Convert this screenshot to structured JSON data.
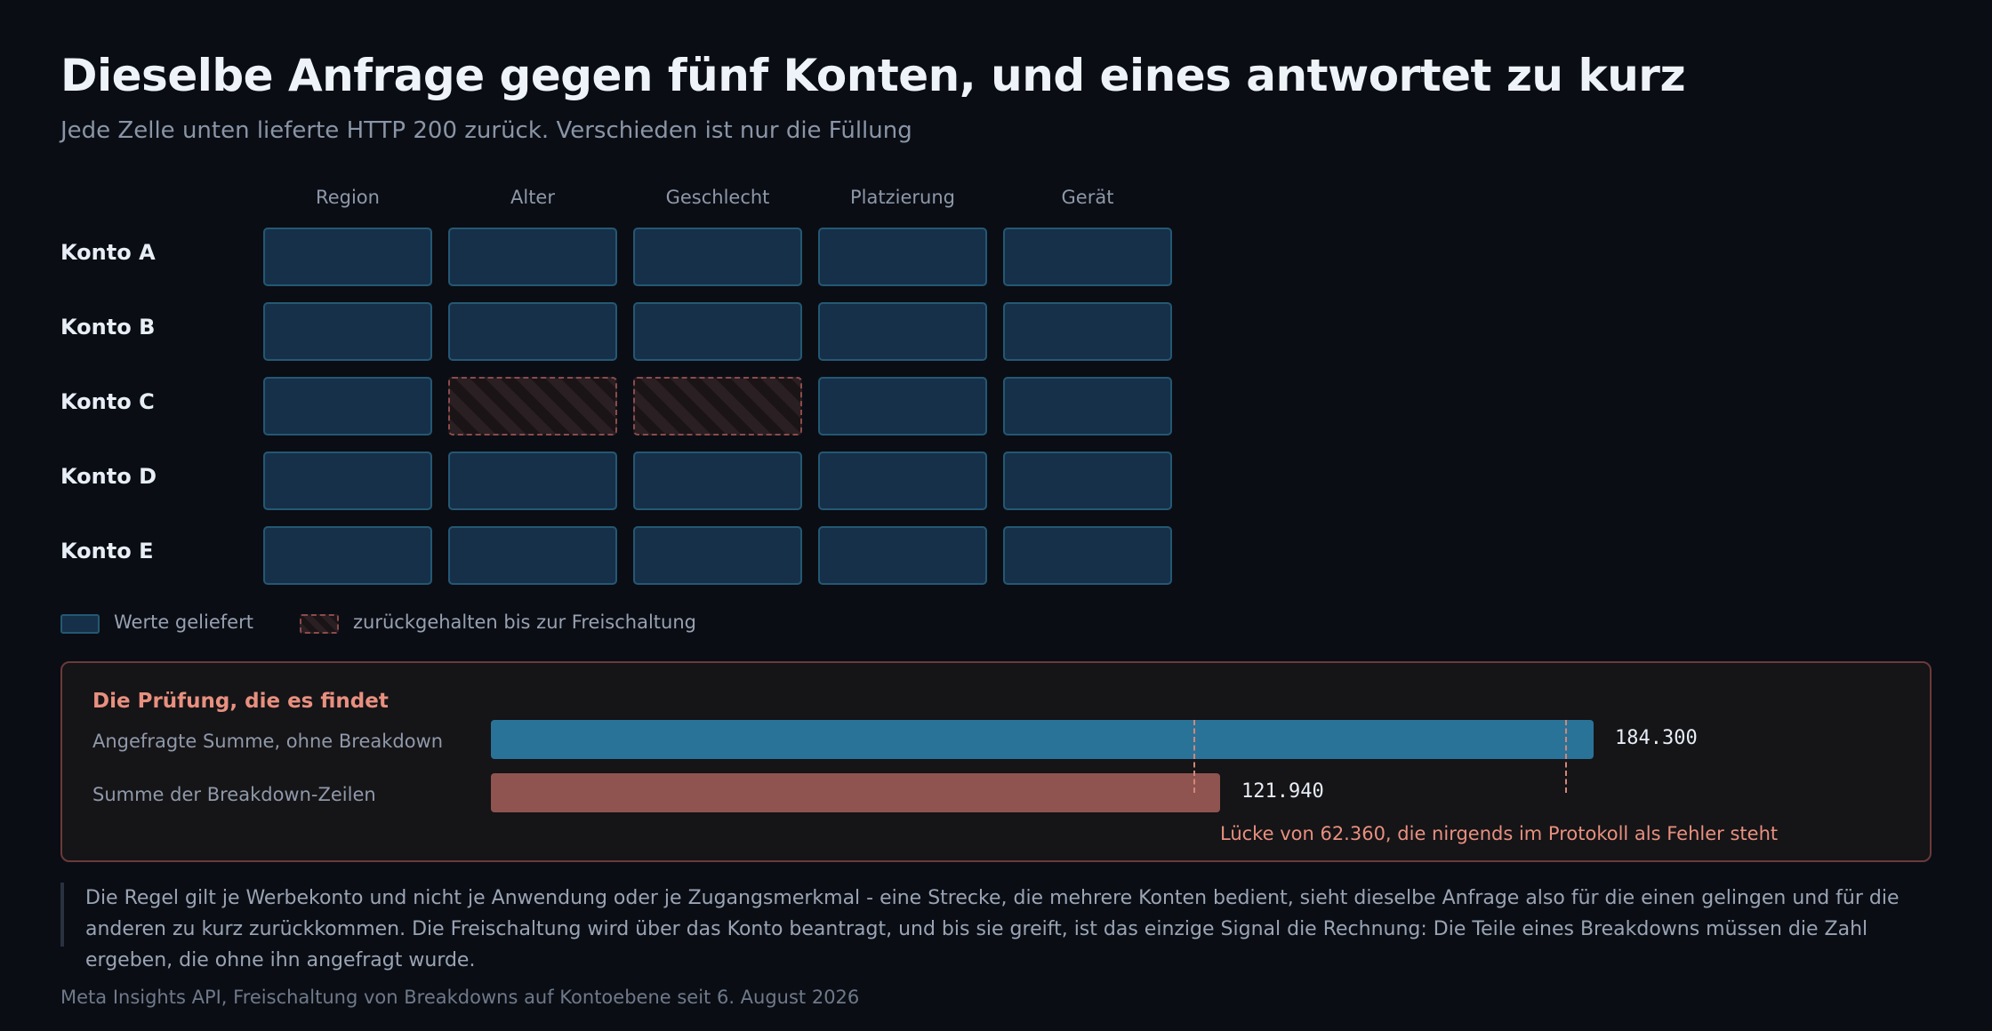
{
  "header": {
    "title": "Dieselbe Anfrage gegen fünf Konten, und eines antwortet zu kurz",
    "subtitle": "Jede Zelle unten lieferte HTTP 200 zurück. Verschieden ist nur die Füllung"
  },
  "chart_data": [
    {
      "type": "heatmap",
      "columns": [
        "Region",
        "Alter",
        "Geschlecht",
        "Platzierung",
        "Gerät"
      ],
      "rows": [
        {
          "label": "Konto A",
          "cells": [
            "ok",
            "ok",
            "ok",
            "ok",
            "ok"
          ]
        },
        {
          "label": "Konto B",
          "cells": [
            "ok",
            "ok",
            "ok",
            "ok",
            "ok"
          ]
        },
        {
          "label": "Konto C",
          "cells": [
            "ok",
            "held",
            "held",
            "ok",
            "ok"
          ]
        },
        {
          "label": "Konto D",
          "cells": [
            "ok",
            "ok",
            "ok",
            "ok",
            "ok"
          ]
        },
        {
          "label": "Konto E",
          "cells": [
            "ok",
            "ok",
            "ok",
            "ok",
            "ok"
          ]
        }
      ],
      "legend": [
        {
          "state": "ok",
          "label": "Werte geliefert"
        },
        {
          "state": "held",
          "label": "zurückgehalten bis zur Freischaltung"
        }
      ],
      "colors": {
        "ok_fill": "#16304a",
        "ok_border": "#245873",
        "held_border": "#8c4b4b"
      }
    },
    {
      "type": "bar",
      "title": "Die Prüfung, die es findet",
      "categories": [
        "Angefragte Summe, ohne Breakdown",
        "Summe der Breakdown-Zeilen"
      ],
      "values": [
        184300,
        121940
      ],
      "value_labels": [
        "184.300",
        "121.940"
      ],
      "xlim": [
        0,
        184300
      ],
      "colors": [
        "#2a7398",
        "#8f5450"
      ],
      "annotation": "Lücke von 62.360, die nirgends im Protokoll als Fehler steht"
    }
  ],
  "note": "Die Regel gilt je Werbekonto und nicht je Anwendung oder je Zugangsmerkmal - eine Strecke, die mehrere Konten bedient, sieht dieselbe Anfrage also für die einen gelingen und für die anderen zu kurz zurückkommen. Die Freischaltung wird über das Konto beantragt, und bis sie greift, ist das einzige Signal die Rechnung: Die Teile eines Breakdowns müssen die Zahl ergeben, die ohne ihn angefragt wurde.",
  "footer": "Meta Insights API, Freischaltung von Breakdowns auf Kontoebene seit 6. August 2026"
}
